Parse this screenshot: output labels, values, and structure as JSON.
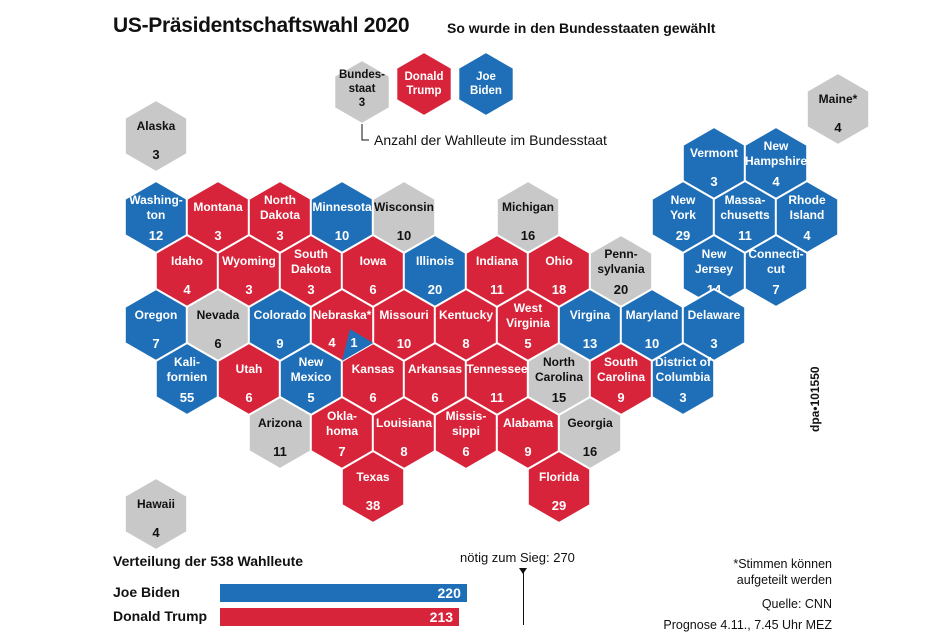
{
  "header": {
    "title": "US-Präsidentschaftswahl 2020",
    "subtitle": "So wurde in den Bundesstaaten gewählt"
  },
  "colors": {
    "trump": "#d8243a",
    "biden": "#1f6fb8",
    "undecided": "#c8c8c8",
    "text_light": "#ffffff",
    "text_dark": "#111111"
  },
  "legend": {
    "state_label": [
      "Bundes-",
      "staat",
      "3"
    ],
    "trump_label": [
      "Donald",
      "Trump"
    ],
    "biden_label": [
      "Joe",
      "Biden"
    ],
    "note": "Anzahl der Wahlleute im Bundesstaat"
  },
  "states": [
    {
      "name": [
        "Alaska"
      ],
      "votes": "3",
      "party": "undecided",
      "col": 0,
      "row": 0
    },
    {
      "name": [
        "Hawaii"
      ],
      "votes": "4",
      "party": "undecided",
      "col": 0,
      "row": 7
    },
    {
      "name": [
        "Maine*"
      ],
      "votes": "4",
      "party": "undecided",
      "col": 11,
      "row": -0.5
    },
    {
      "name": [
        "Washing-",
        "ton"
      ],
      "votes": "12",
      "party": "biden",
      "col": 0,
      "row": 1.5
    },
    {
      "name": [
        "Montana"
      ],
      "votes": "3",
      "party": "trump",
      "col": 1,
      "row": 1.5
    },
    {
      "name": [
        "North",
        "Dakota"
      ],
      "votes": "3",
      "party": "trump",
      "col": 2,
      "row": 1.5
    },
    {
      "name": [
        "Minnesota"
      ],
      "votes": "10",
      "party": "biden",
      "col": 3,
      "row": 1.5
    },
    {
      "name": [
        "Wisconsin"
      ],
      "votes": "10",
      "party": "undecided",
      "col": 4,
      "row": 1.5
    },
    {
      "name": [
        "Michigan"
      ],
      "votes": "16",
      "party": "undecided",
      "col": 6,
      "row": 1.5
    },
    {
      "name": [
        "Vermont"
      ],
      "votes": "3",
      "party": "biden",
      "col": 9,
      "row": 0.5
    },
    {
      "name": [
        "New",
        "Hampshire"
      ],
      "votes": "4",
      "party": "biden",
      "col": 10,
      "row": 0.5
    },
    {
      "name": [
        "New",
        "York"
      ],
      "votes": "29",
      "party": "biden",
      "col": 8.5,
      "row": 1.5
    },
    {
      "name": [
        "Massa-",
        "chusetts"
      ],
      "votes": "11",
      "party": "biden",
      "col": 9.5,
      "row": 1.5
    },
    {
      "name": [
        "Rhode",
        "Island"
      ],
      "votes": "4",
      "party": "biden",
      "col": 10.5,
      "row": 1.5
    },
    {
      "name": [
        "Idaho"
      ],
      "votes": "4",
      "party": "trump",
      "col": 0.5,
      "row": 2.5
    },
    {
      "name": [
        "Wyoming"
      ],
      "votes": "3",
      "party": "trump",
      "col": 1.5,
      "row": 2.5
    },
    {
      "name": [
        "South",
        "Dakota"
      ],
      "votes": "3",
      "party": "trump",
      "col": 2.5,
      "row": 2.5
    },
    {
      "name": [
        "Iowa"
      ],
      "votes": "6",
      "party": "trump",
      "col": 3.5,
      "row": 2.5
    },
    {
      "name": [
        "Illinois"
      ],
      "votes": "20",
      "party": "biden",
      "col": 4.5,
      "row": 2.5
    },
    {
      "name": [
        "Indiana"
      ],
      "votes": "11",
      "party": "trump",
      "col": 5.5,
      "row": 2.5
    },
    {
      "name": [
        "Ohio"
      ],
      "votes": "18",
      "party": "trump",
      "col": 6.5,
      "row": 2.5
    },
    {
      "name": [
        "Penn-",
        "sylvania"
      ],
      "votes": "20",
      "party": "undecided",
      "col": 7.5,
      "row": 2.5
    },
    {
      "name": [
        "New",
        "Jersey"
      ],
      "votes": "14",
      "party": "biden",
      "col": 9,
      "row": 2.5
    },
    {
      "name": [
        "Connecti-",
        "cut"
      ],
      "votes": "7",
      "party": "biden",
      "col": 10,
      "row": 2.5
    },
    {
      "name": [
        "Oregon"
      ],
      "votes": "7",
      "party": "biden",
      "col": 0,
      "row": 3.5
    },
    {
      "name": [
        "Nevada"
      ],
      "votes": "6",
      "party": "undecided",
      "col": 1,
      "row": 3.5
    },
    {
      "name": [
        "Colorado"
      ],
      "votes": "9",
      "party": "biden",
      "col": 2,
      "row": 3.5
    },
    {
      "name": [
        "Missouri"
      ],
      "votes": "10",
      "party": "trump",
      "col": 4,
      "row": 3.5
    },
    {
      "name": [
        "Kentucky"
      ],
      "votes": "8",
      "party": "trump",
      "col": 5,
      "row": 3.5
    },
    {
      "name": [
        "West",
        "Virginia"
      ],
      "votes": "5",
      "party": "trump",
      "col": 6,
      "row": 3.5
    },
    {
      "name": [
        "Virgina"
      ],
      "votes": "13",
      "party": "biden",
      "col": 7,
      "row": 3.5
    },
    {
      "name": [
        "Maryland"
      ],
      "votes": "10",
      "party": "biden",
      "col": 8,
      "row": 3.5
    },
    {
      "name": [
        "Delaware"
      ],
      "votes": "3",
      "party": "biden",
      "col": 9,
      "row": 3.5
    },
    {
      "name": [
        "Kali-",
        "fornien"
      ],
      "votes": "55",
      "party": "biden",
      "col": 0.5,
      "row": 4.5
    },
    {
      "name": [
        "Utah"
      ],
      "votes": "6",
      "party": "trump",
      "col": 1.5,
      "row": 4.5
    },
    {
      "name": [
        "New",
        "Mexico"
      ],
      "votes": "5",
      "party": "biden",
      "col": 2.5,
      "row": 4.5
    },
    {
      "name": [
        "Kansas"
      ],
      "votes": "6",
      "party": "trump",
      "col": 3.5,
      "row": 4.5
    },
    {
      "name": [
        "Arkansas"
      ],
      "votes": "6",
      "party": "trump",
      "col": 4.5,
      "row": 4.5
    },
    {
      "name": [
        "Tennessee"
      ],
      "votes": "11",
      "party": "trump",
      "col": 5.5,
      "row": 4.5
    },
    {
      "name": [
        "North",
        "Carolina"
      ],
      "votes": "15",
      "party": "undecided",
      "col": 6.5,
      "row": 4.5
    },
    {
      "name": [
        "South",
        "Carolina"
      ],
      "votes": "9",
      "party": "trump",
      "col": 7.5,
      "row": 4.5
    },
    {
      "name": [
        "District of",
        "Columbia"
      ],
      "votes": "3",
      "party": "biden",
      "col": 8.5,
      "row": 4.5
    },
    {
      "name": [
        "Arizona"
      ],
      "votes": "11",
      "party": "undecided",
      "col": 2,
      "row": 5.5
    },
    {
      "name": [
        "Okla-",
        "homa"
      ],
      "votes": "7",
      "party": "trump",
      "col": 3,
      "row": 5.5
    },
    {
      "name": [
        "Louisiana"
      ],
      "votes": "8",
      "party": "trump",
      "col": 4,
      "row": 5.5
    },
    {
      "name": [
        "Missis-",
        "sippi"
      ],
      "votes": "6",
      "party": "trump",
      "col": 5,
      "row": 5.5
    },
    {
      "name": [
        "Alabama"
      ],
      "votes": "9",
      "party": "trump",
      "col": 6,
      "row": 5.5
    },
    {
      "name": [
        "Georgia"
      ],
      "votes": "16",
      "party": "undecided",
      "col": 7,
      "row": 5.5
    },
    {
      "name": [
        "Texas"
      ],
      "votes": "38",
      "party": "trump",
      "col": 3.5,
      "row": 6.5
    },
    {
      "name": [
        "Florida"
      ],
      "votes": "29",
      "party": "trump",
      "col": 6.5,
      "row": 6.5
    }
  ],
  "nebraska": {
    "name": "Nebraska*",
    "trump_votes": "4",
    "biden_votes": "1"
  },
  "distribution": {
    "title": "Verteilung der 538 Wahlleute",
    "needed_label": "nötig zum Sieg: 270",
    "total": 538,
    "needed": 270,
    "candidates": [
      {
        "name": "Joe Biden",
        "votes": "220",
        "value": 220,
        "party": "biden"
      },
      {
        "name": "Donald Trump",
        "votes": "213",
        "value": 213,
        "party": "trump"
      }
    ]
  },
  "notes": {
    "split": [
      "*Stimmen können",
      "aufgeteilt werden"
    ],
    "source": "Quelle: CNN",
    "forecast": "Prognose 4.11., 7.45 Uhr MEZ",
    "code": "dpa•101550"
  }
}
